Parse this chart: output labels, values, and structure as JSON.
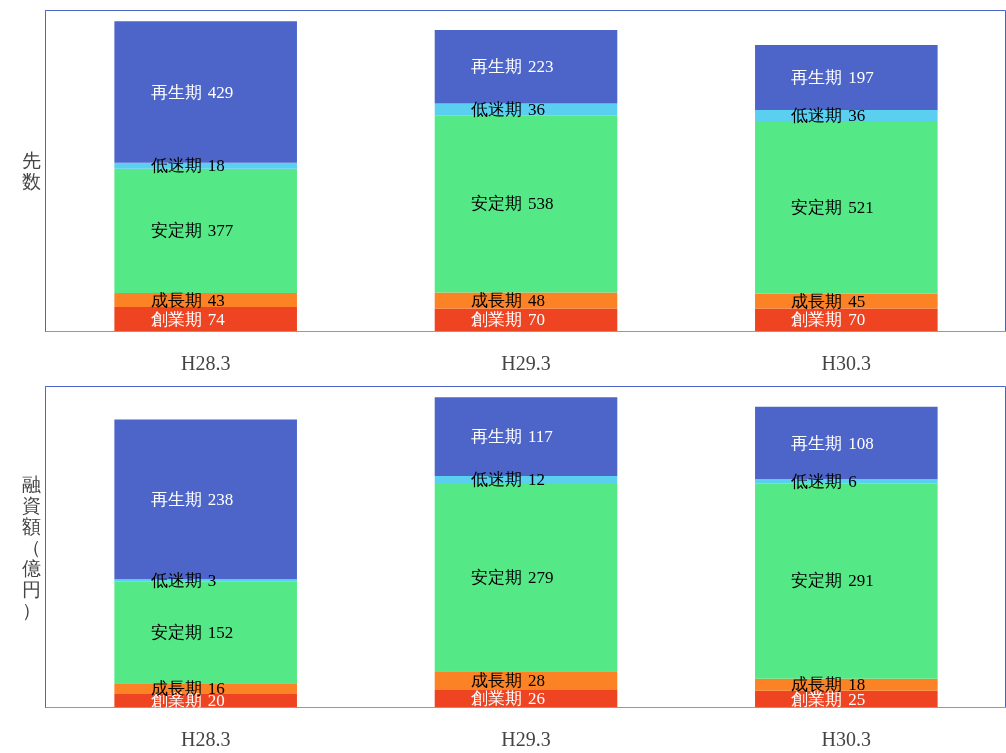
{
  "chart_data": [
    {
      "type": "bar",
      "stacked": true,
      "ylabel": "先数",
      "categories": [
        "H28.3",
        "H29.3",
        "H30.3"
      ],
      "data_labels": true,
      "legend": false,
      "grid": false,
      "series": [
        {
          "name": "創業期",
          "color": "#ee4422",
          "values": [
            74,
            70,
            70
          ]
        },
        {
          "name": "成長期",
          "color": "#fb8225",
          "values": [
            43,
            48,
            45
          ]
        },
        {
          "name": "安定期",
          "color": "#55e886",
          "values": [
            377,
            538,
            521
          ]
        },
        {
          "name": "低迷期",
          "color": "#5bcff0",
          "values": [
            18,
            36,
            36
          ]
        },
        {
          "name": "再生期",
          "color": "#4d65c8",
          "values": [
            429,
            223,
            197
          ]
        }
      ]
    },
    {
      "type": "bar",
      "stacked": true,
      "ylabel": "融資額（億円）",
      "categories": [
        "H28.3",
        "H29.3",
        "H30.3"
      ],
      "data_labels": true,
      "legend": false,
      "grid": false,
      "series": [
        {
          "name": "創業期",
          "color": "#ee4422",
          "values": [
            20,
            26,
            25
          ]
        },
        {
          "name": "成長期",
          "color": "#fb8225",
          "values": [
            16,
            28,
            18
          ]
        },
        {
          "name": "安定期",
          "color": "#55e886",
          "values": [
            152,
            279,
            291
          ]
        },
        {
          "name": "低迷期",
          "color": "#5bcff0",
          "values": [
            3,
            12,
            6
          ]
        },
        {
          "name": "再生期",
          "color": "#4d65c8",
          "values": [
            238,
            117,
            108
          ]
        }
      ]
    }
  ]
}
